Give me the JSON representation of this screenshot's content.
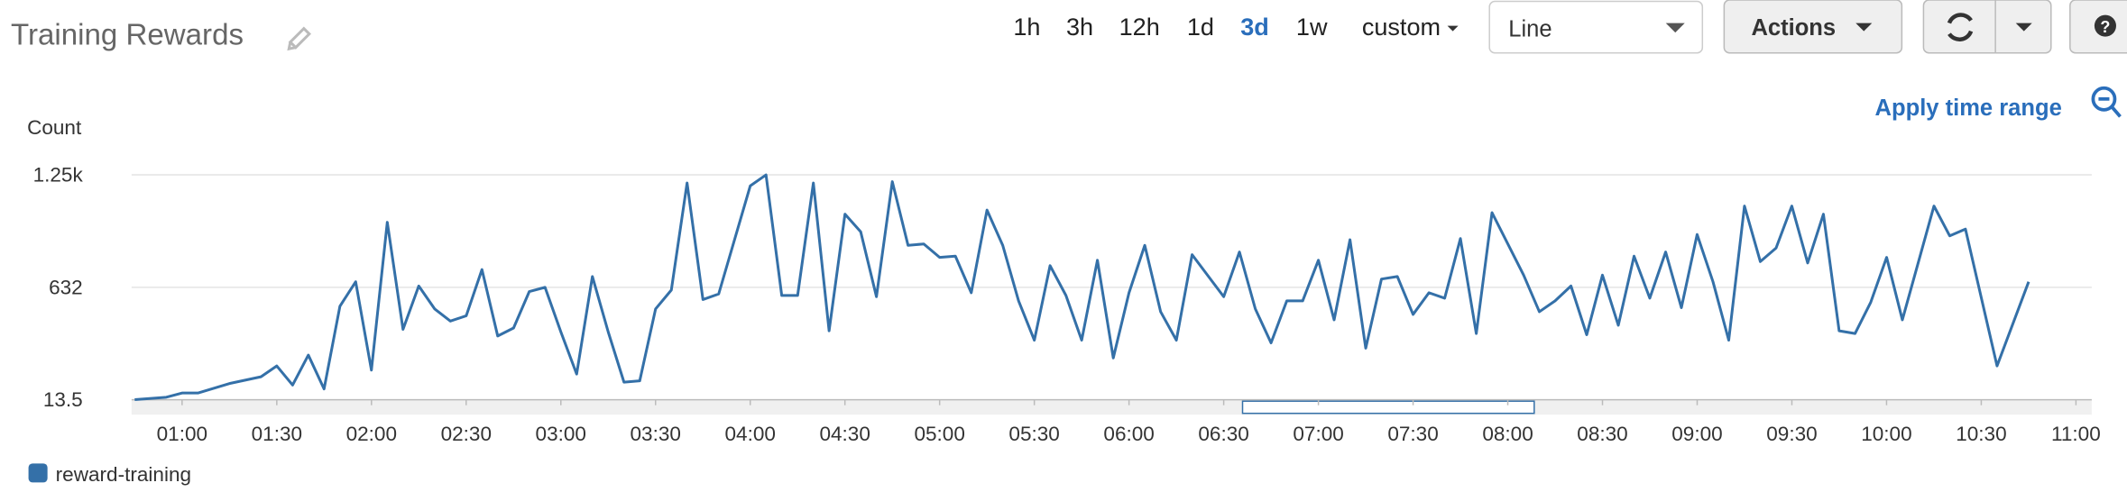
{
  "header": {
    "title": "Training Rewards",
    "time_ranges": [
      "1h",
      "3h",
      "12h",
      "1d",
      "3d",
      "1w",
      "custom"
    ],
    "selected_range": 4,
    "view": "Line",
    "actions": "Actions",
    "help": "?",
    "apply": "Apply time range"
  },
  "chart_data": {
    "type": "line",
    "y_label": "Count",
    "x": [
      45,
      55,
      60,
      65,
      75,
      85,
      90,
      95,
      100,
      105,
      110,
      115,
      120,
      125,
      130,
      135,
      140,
      145,
      150,
      155,
      160,
      165,
      170,
      175,
      180,
      185,
      190,
      195,
      200,
      205,
      210,
      215,
      220,
      225,
      230,
      240,
      245,
      250,
      255,
      260,
      265,
      270,
      275,
      280,
      285,
      290,
      295,
      300,
      305,
      310,
      315,
      320,
      325,
      330,
      335,
      340,
      345,
      350,
      355,
      360,
      365,
      370,
      375,
      380,
      390,
      395,
      400,
      405,
      410,
      415,
      420,
      425,
      430,
      435,
      440,
      445,
      450,
      455,
      460,
      465,
      470,
      475,
      485,
      490,
      495,
      500,
      505,
      510,
      515,
      520,
      525,
      530,
      535,
      540,
      545,
      550,
      555,
      560,
      565,
      570,
      575,
      580,
      585,
      590,
      595,
      600,
      605,
      615,
      620,
      625,
      635,
      645
    ],
    "series": [
      {
        "name": "reward-training",
        "color": "#3470a8",
        "values": [
          14,
          28,
          51,
          51,
          103,
          140,
          200,
          95,
          259,
          73,
          528,
          662,
          177,
          989,
          401,
          639,
          513,
          446,
          475,
          729,
          364,
          408,
          609,
          632,
          386,
          155,
          691,
          386,
          110,
          118,
          513,
          617,
          1205,
          565,
          595,
          1190,
          1250,
          587,
          587,
          1205,
          393,
          1034,
          937,
          580,
          1213,
          863,
          870,
          796,
          803,
          602,
          1056,
          863,
          557,
          341,
          751,
          587,
          341,
          781,
          244,
          602,
          863,
          498,
          341,
          811,
          580,
          826,
          513,
          326,
          557,
          557,
          781,
          453,
          893,
          297,
          677,
          691,
          483,
          602,
          572,
          900,
          378,
          1042,
          699,
          498,
          557,
          639,
          371,
          699,
          423,
          803,
          572,
          826,
          520,
          922,
          662,
          341,
          1079,
          773,
          848,
          1079,
          766,
          1034,
          393,
          378,
          550,
          796,
          453,
          1079,
          915,
          952,
          200,
          662
        ]
      }
    ],
    "xlim": [
      44,
      665
    ],
    "ylim": [
      13.5,
      1250
    ],
    "xticks": [
      {
        "value": 60,
        "label": "01:00"
      },
      {
        "value": 90,
        "label": "01:30"
      },
      {
        "value": 120,
        "label": "02:00"
      },
      {
        "value": 150,
        "label": "02:30"
      },
      {
        "value": 180,
        "label": "03:00"
      },
      {
        "value": 210,
        "label": "03:30"
      },
      {
        "value": 240,
        "label": "04:00"
      },
      {
        "value": 270,
        "label": "04:30"
      },
      {
        "value": 300,
        "label": "05:00"
      },
      {
        "value": 330,
        "label": "05:30"
      },
      {
        "value": 360,
        "label": "06:00"
      },
      {
        "value": 390,
        "label": "06:30"
      },
      {
        "value": 420,
        "label": "07:00"
      },
      {
        "value": 450,
        "label": "07:30"
      },
      {
        "value": 480,
        "label": "08:00"
      },
      {
        "value": 510,
        "label": "08:30"
      },
      {
        "value": 540,
        "label": "09:00"
      },
      {
        "value": 570,
        "label": "09:30"
      },
      {
        "value": 600,
        "label": "10:00"
      },
      {
        "value": 630,
        "label": "10:30"
      },
      {
        "value": 660,
        "label": "11:00"
      }
    ],
    "yticks": [
      13.5,
      632,
      {
        "value": 1250,
        "label": "1.25k"
      }
    ],
    "grid": true
  }
}
